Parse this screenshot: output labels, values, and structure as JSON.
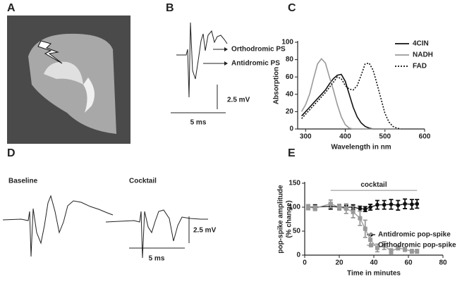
{
  "panel_labels": [
    "A",
    "B",
    "C",
    "D",
    "E"
  ],
  "trace_b": {
    "labels": [
      "Orthodromic PS",
      "Antidromic PS"
    ],
    "scale_y": "2.5 mV",
    "scale_x": "5 ms"
  },
  "trace_d": {
    "titles": [
      "Baseline",
      "Cocktail"
    ],
    "scale_y": "2.5 mV",
    "scale_x": "5 ms"
  },
  "chart_data": [
    {
      "type": "line",
      "xlabel": "Wavelength in nm",
      "ylabel": "Absorption",
      "x": [
        290,
        300,
        310,
        320,
        330,
        340,
        350,
        360,
        370,
        380,
        390,
        400,
        410,
        420,
        430,
        440,
        450,
        460,
        470,
        480,
        490,
        500,
        510,
        520,
        530,
        540
      ],
      "series": [
        {
          "name": "4CIN",
          "color": "#111111",
          "style": "solid",
          "values": [
            15,
            20,
            25,
            30,
            35,
            40,
            45,
            52,
            58,
            62,
            63,
            55,
            40,
            25,
            14,
            7,
            3,
            1,
            0,
            0,
            0,
            0,
            0,
            0,
            0,
            0
          ]
        },
        {
          "name": "NADH",
          "color": "#999999",
          "style": "solid",
          "values": [
            20,
            28,
            40,
            58,
            75,
            81,
            76,
            60,
            45,
            28,
            14,
            5,
            1,
            0,
            0,
            0,
            0,
            0,
            0,
            0,
            0,
            0,
            0,
            0,
            0,
            0
          ]
        },
        {
          "name": "FAD",
          "color": "#111111",
          "style": "dotted",
          "values": [
            12,
            17,
            22,
            27,
            32,
            37,
            42,
            48,
            54,
            60,
            58,
            50,
            46,
            45,
            50,
            62,
            75,
            76,
            68,
            52,
            35,
            18,
            8,
            3,
            1,
            0
          ]
        }
      ],
      "xlim": [
        280,
        600
      ],
      "xticks": [
        300,
        400,
        500,
        600
      ],
      "ylim": [
        0,
        100
      ],
      "yticks": [
        0,
        20,
        40,
        60,
        80,
        100
      ]
    },
    {
      "type": "line",
      "xlabel": "Time in minutes",
      "ylabel": [
        "pop-spike amplitude",
        "(% change)"
      ],
      "annotation": {
        "text": "cocktail",
        "x": [
          15,
          65
        ],
        "y": 135
      },
      "x": [
        2,
        6,
        15,
        20,
        24,
        28,
        32,
        35,
        38,
        42,
        46,
        50,
        54,
        58,
        62,
        65
      ],
      "series": [
        {
          "name": "Antidromic pop-spike",
          "color": "#111111",
          "marker": "circle",
          "values": [
            100,
            100,
            102,
            100,
            100,
            100,
            97,
            96,
            100,
            105,
            105,
            106,
            104,
            107,
            106,
            107
          ],
          "errors": [
            5,
            5,
            6,
            4,
            4,
            5,
            5,
            5,
            6,
            9,
            9,
            10,
            10,
            10,
            10,
            9
          ]
        },
        {
          "name": "Orthodromic pop-spike",
          "color": "#999999",
          "marker": "square",
          "values": [
            100,
            98,
            107,
            100,
            97,
            90,
            77,
            55,
            32,
            15,
            20,
            8,
            15,
            12,
            8,
            8
          ],
          "errors": [
            5,
            5,
            8,
            6,
            10,
            12,
            15,
            18,
            12,
            8,
            8,
            5,
            4,
            4,
            4,
            4
          ]
        }
      ],
      "xlim": [
        0,
        80
      ],
      "xticks": [
        0,
        20,
        40,
        60,
        80
      ],
      "ylim": [
        0,
        150
      ],
      "yticks": [
        0,
        50,
        100,
        150
      ]
    }
  ]
}
